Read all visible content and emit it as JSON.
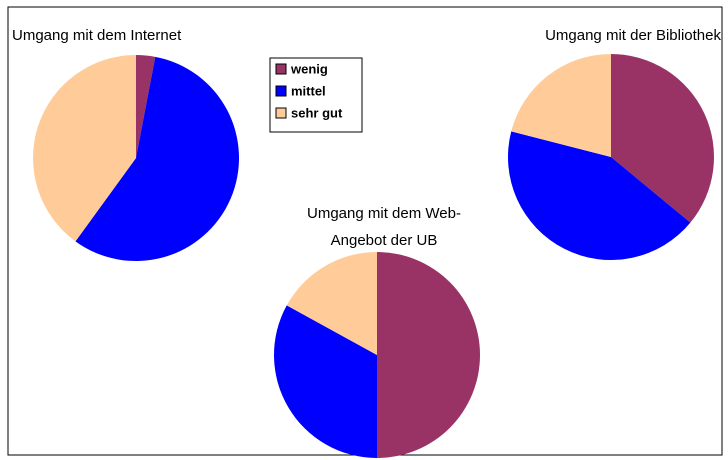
{
  "chart_data": [
    {
      "type": "pie",
      "title": [
        "Umgang mit dem Internet"
      ],
      "categories": [
        "wenig",
        "mittel",
        "sehr gut"
      ],
      "values": [
        3,
        57,
        40
      ],
      "colors": [
        "#993366",
        "#0000ff",
        "#ffcc99"
      ],
      "legend": "top"
    },
    {
      "type": "pie",
      "title": [
        "Umgang mit der Bibliothek"
      ],
      "categories": [
        "wenig",
        "mittel",
        "sehr gut"
      ],
      "values": [
        36,
        43,
        21
      ],
      "colors": [
        "#993366",
        "#0000ff",
        "#ffcc99"
      ]
    },
    {
      "type": "pie",
      "title": [
        "Umgang mit dem Web-",
        "Angebot der UB"
      ],
      "categories": [
        "wenig",
        "mittel",
        "sehr gut"
      ],
      "values": [
        50,
        33,
        17
      ],
      "colors": [
        "#993366",
        "#0000ff",
        "#ffcc99"
      ]
    }
  ]
}
